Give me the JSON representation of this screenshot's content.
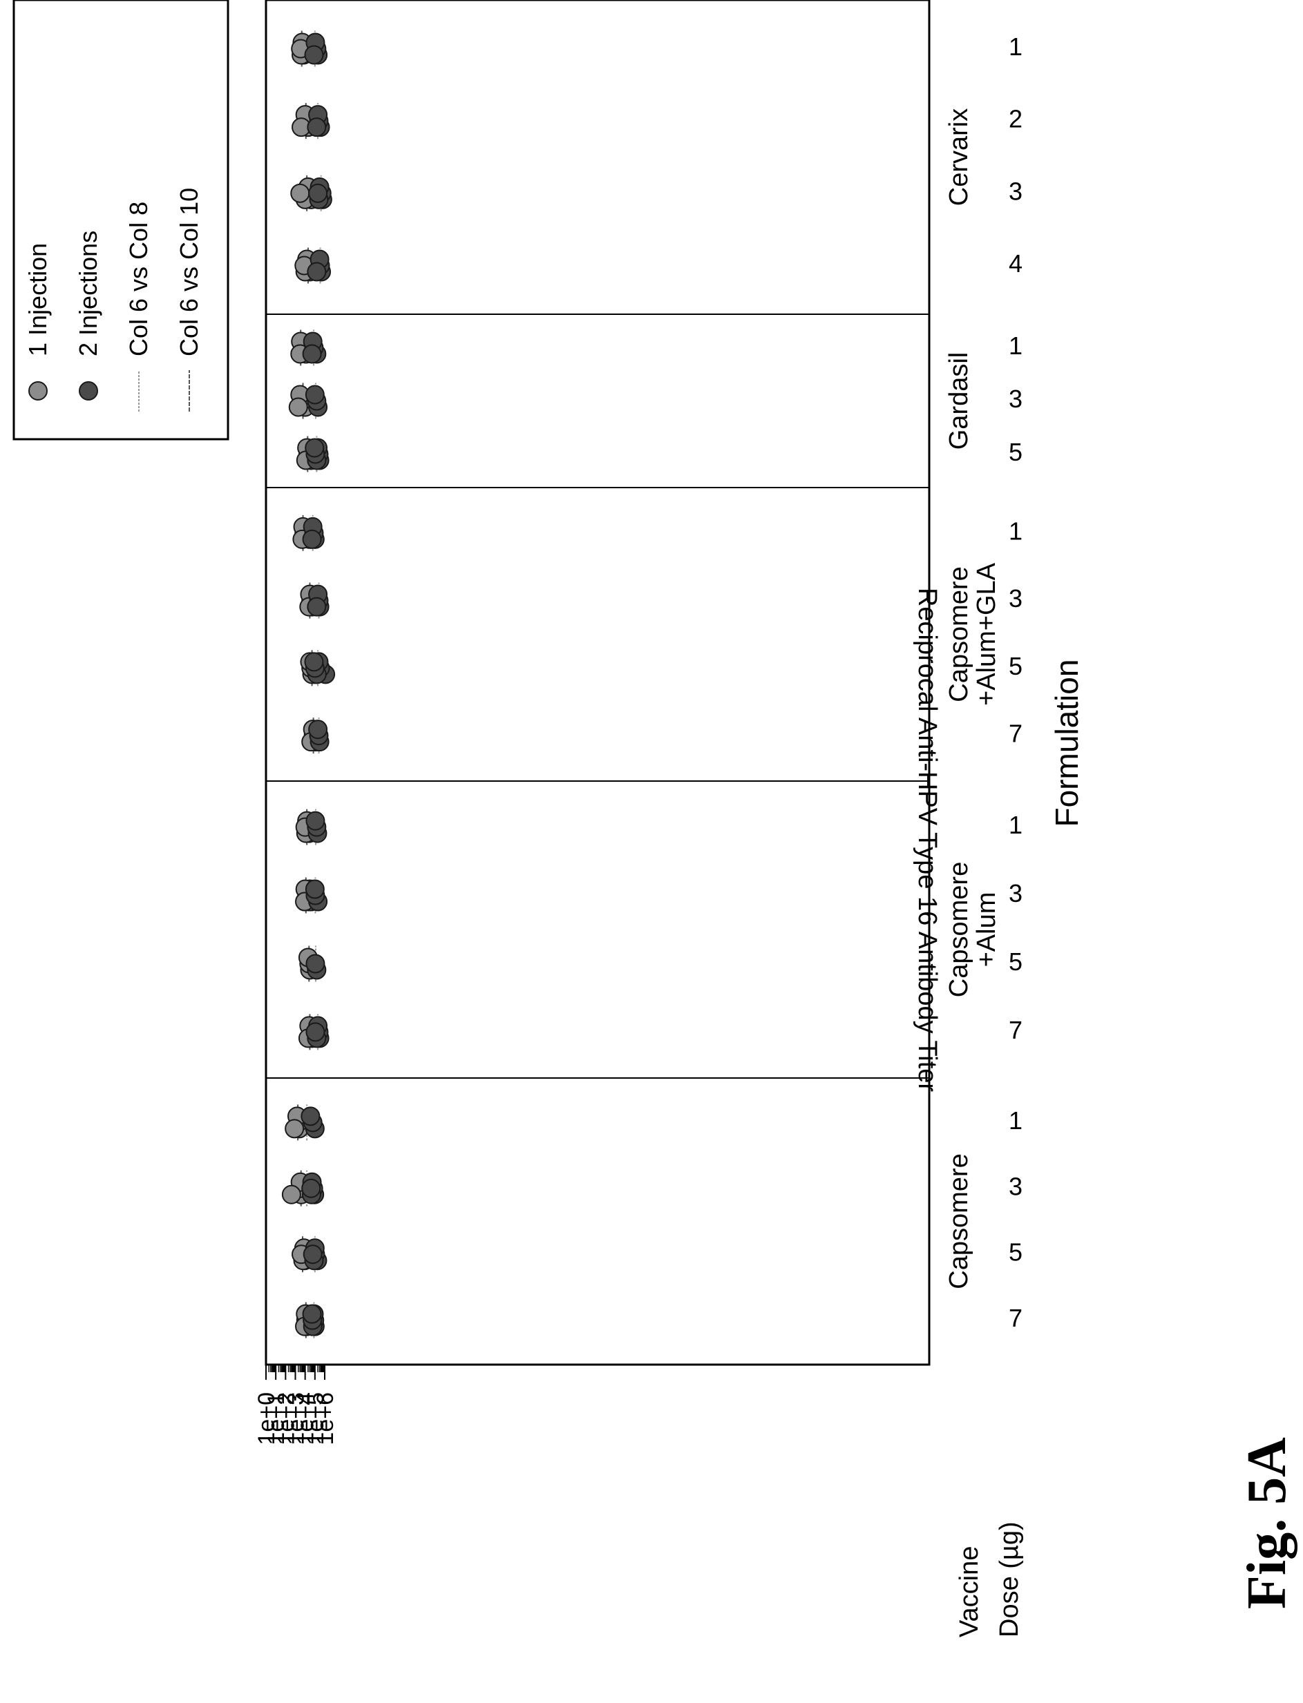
{
  "figure_label": "Fig. 5A",
  "colors": {
    "one_injection": "#8c8c8c",
    "two_injections": "#4a4a4a",
    "marker_edge": "#1a1a1a",
    "col8_line": "#999999",
    "col10_line": "#555555"
  },
  "chart_data": {
    "type": "scatter",
    "ylabel": "Reciprocal Anti-HPV Type 16 Antibody Titer",
    "xlabel": "Formulation",
    "yscale": "log",
    "ylim": [
      1,
      1000000
    ],
    "y_ticks": [
      "1e+0",
      "1e+1",
      "1e+2",
      "1e+3",
      "1e+4",
      "1e+5",
      "1e+6"
    ],
    "row_labels": {
      "vaccine": "Vaccine",
      "dose": "Dose (µg)"
    },
    "legend": {
      "position": "top-right",
      "entries": [
        {
          "label": "1 Injection",
          "type": "point",
          "series": "one_injection"
        },
        {
          "label": "2 Injections",
          "type": "point",
          "series": "two_injections"
        },
        {
          "label": "Col 6 vs Col 8",
          "type": "line",
          "series": "col8_line"
        },
        {
          "label": "Col 6 vs Col 10",
          "type": "line",
          "series": "col10_line"
        }
      ]
    },
    "groups": [
      {
        "vaccine": [
          "Capsomere"
        ],
        "doses": [
          {
            "dose": "7",
            "one_injection": [
              14000,
              12000,
              11000,
              9000
            ],
            "two_injections": [
              100000,
              90000,
              80000,
              60000,
              55000,
              50000
            ],
            "col8_line": 80000,
            "col10_line": 12000
          },
          {
            "dose": "5",
            "one_injection": [
              9000,
              8000,
              7500,
              6000,
              4000
            ],
            "two_injections": [
              180000,
              110000,
              100000,
              80000,
              60000
            ],
            "col8_line": 100000,
            "col10_line": 5500
          },
          {
            "dose": "3",
            "one_injection": [
              4000,
              3500,
              3200,
              400
            ],
            "two_injections": [
              90000,
              70000,
              50000,
              45000,
              40000
            ],
            "col8_line": 15000,
            "col10_line": 3800
          },
          {
            "dose": "1",
            "one_injection": [
              2500,
              2000,
              1500,
              800
            ],
            "two_injections": [
              100000,
              60000,
              35000
            ],
            "col8_line": 15000,
            "col10_line": 1800
          }
        ]
      },
      {
        "vaccine": [
          "Capsomere",
          "+Alum"
        ],
        "doses": [
          {
            "dose": "7",
            "one_injection": [
              50000,
              40000,
              25000,
              20000
            ],
            "two_injections": [
              300000,
              250000,
              200000,
              150000,
              110000
            ],
            "col8_line": 200000,
            "col10_line": 30000
          },
          {
            "dose": "5",
            "one_injection": [
              30000,
              25000,
              20000
            ],
            "two_injections": [
              150000,
              110000
            ],
            "col8_line": 120000,
            "col10_line": 25000
          },
          {
            "dose": "3",
            "one_injection": [
              40000,
              35000,
              30000,
              25000,
              15000,
              10000,
              9000
            ],
            "two_injections": [
              200000,
              110000,
              100000
            ],
            "col8_line": 110000,
            "col10_line": 12000
          },
          {
            "dose": "1",
            "one_injection": [
              25000,
              20000,
              15000,
              12000,
              10000
            ],
            "two_injections": [
              180000,
              150000,
              110000
            ],
            "col8_line": 120000,
            "col10_line": 15000
          }
        ]
      },
      {
        "vaccine": [
          "Capsomere",
          "+Alum+GLA"
        ],
        "doses": [
          {
            "dose": "7",
            "one_injection": [
              120000,
              70000,
              60000,
              40000
            ],
            "two_injections": [
              300000,
              250000,
              200000
            ],
            "col8_line": 250000,
            "col10_line": 70000
          },
          {
            "dose": "5",
            "one_injection": [
              100000,
              80000,
              60000,
              50000,
              40000,
              30000
            ],
            "two_injections": [
              1200000,
              350000,
              250000,
              160000,
              100000,
              80000
            ],
            "col8_line": 200000,
            "col10_line": 50000
          },
          {
            "dose": "3",
            "one_injection": [
              50000,
              40000,
              30000,
              25000
            ],
            "two_injections": [
              300000,
              250000,
              200000,
              150000
            ],
            "col8_line": 250000,
            "col10_line": 30000
          },
          {
            "dose": "1",
            "one_injection": [
              30000,
              8000,
              6000,
              5000
            ],
            "two_injections": [
              100000,
              80000,
              60000,
              50000
            ],
            "col8_line": 60000,
            "col10_line": 6000
          }
        ]
      },
      {
        "vaccine": [
          "Gardasil"
        ],
        "doses": [
          {
            "dose": "5",
            "one_injection": [
              40000,
              20000,
              15000,
              12000
            ],
            "two_injections": [
              300000,
              250000,
              200000,
              150000,
              110000,
              90000
            ],
            "col8_line": 150000,
            "col10_line": 18000
          },
          {
            "dose": "3",
            "one_injection": [
              10000,
              5000,
              3000,
              2000
            ],
            "two_injections": [
              200000,
              150000,
              100000
            ],
            "col8_line": 120000,
            "col10_line": 6000
          },
          {
            "dose": "1",
            "one_injection": [
              12000,
              9000,
              3500,
              3000
            ],
            "two_injections": [
              150000,
              80000,
              60000,
              50000
            ],
            "col8_line": 75000,
            "col10_line": 3500
          }
        ]
      },
      {
        "vaccine": [
          "Cervarix"
        ],
        "doses": [
          {
            "dose": "4",
            "one_injection": [
              30000,
              25000,
              15000,
              10000,
              8000
            ],
            "two_injections": [
              450000,
              350000,
              300000,
              150000
            ],
            "col8_line": 350000,
            "col10_line": 20000
          },
          {
            "dose": "3",
            "one_injection": [
              40000,
              30000,
              20000,
              10000,
              3000
            ],
            "two_injections": [
              600000,
              500000,
              300000,
              250000,
              200000
            ],
            "col8_line": 420000,
            "col10_line": 15000
          },
          {
            "dose": "2",
            "one_injection": [
              20000,
              15000,
              10000,
              4000
            ],
            "two_injections": [
              350000,
              250000,
              200000,
              150000
            ],
            "col8_line": 200000,
            "col10_line": 12000
          },
          {
            "dose": "1",
            "one_injection": [
              7000,
              6000,
              5000,
              4000,
              3500
            ],
            "two_injections": [
              200000,
              150000,
              110000,
              80000
            ],
            "col8_line": 100000,
            "col10_line": 4500
          }
        ]
      }
    ]
  }
}
